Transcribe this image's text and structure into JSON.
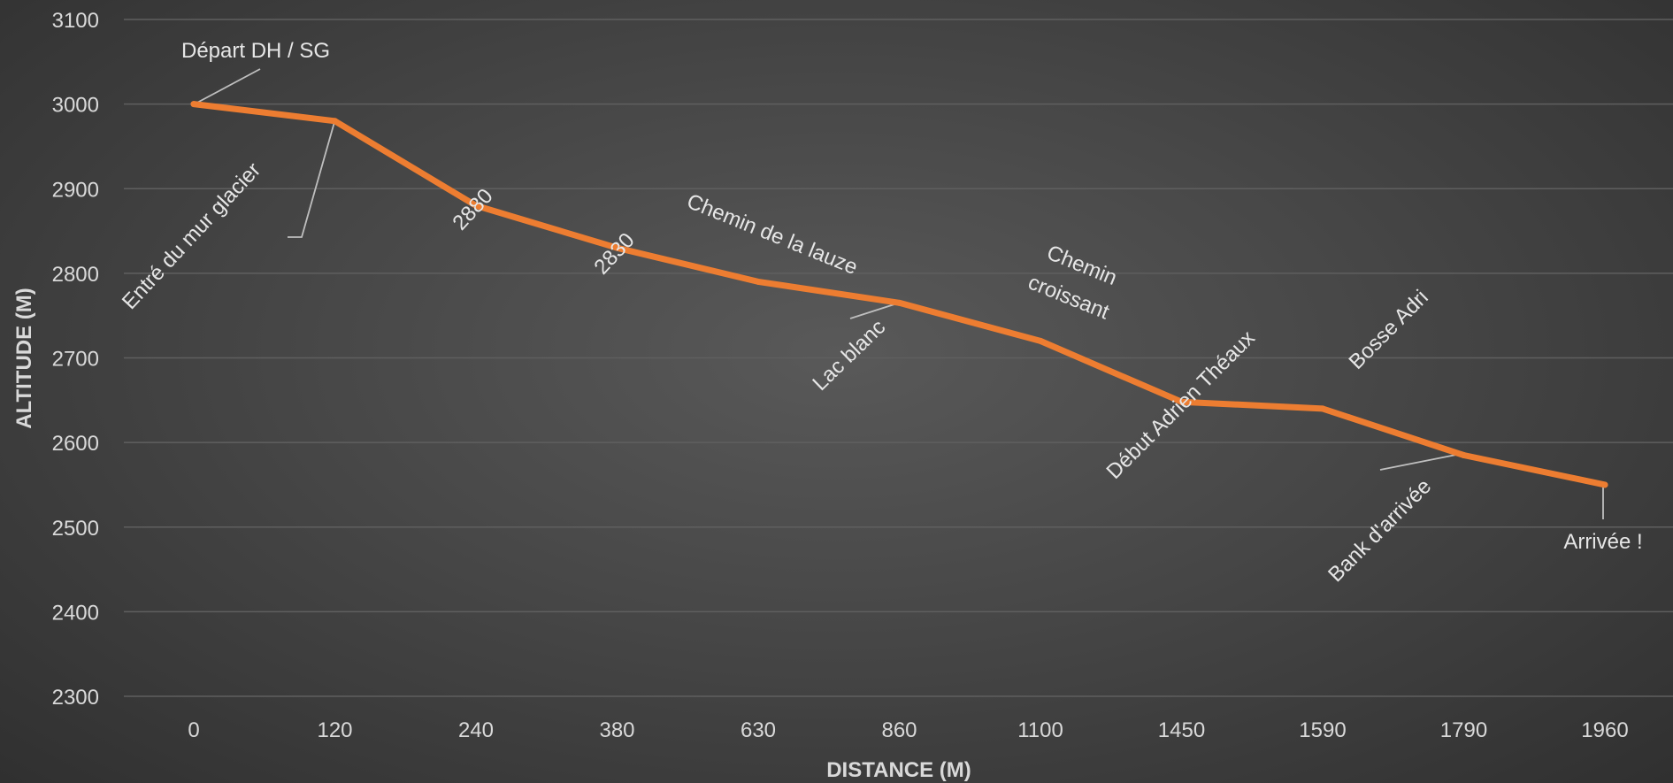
{
  "chart_data": {
    "type": "line",
    "title": "",
    "xlabel": "DISTANCE (M)",
    "ylabel": "ALTITUDE (M)",
    "categories": [
      "0",
      "120",
      "240",
      "380",
      "630",
      "860",
      "1100",
      "1450",
      "1590",
      "1790",
      "1960"
    ],
    "ylim": [
      2300,
      3100
    ],
    "yticks": [
      "3100",
      "3000",
      "2900",
      "2800",
      "2700",
      "2600",
      "2500",
      "2400",
      "2300"
    ],
    "grid": true,
    "legend": "none",
    "series": [
      {
        "values": [
          3000,
          2980,
          2880,
          2830,
          2790,
          2765,
          2720,
          2648,
          2640,
          2585,
          2550
        ]
      }
    ],
    "annotations": [
      {
        "text": "Départ DH / SG"
      },
      {
        "text": "Entré du mur glacier"
      },
      {
        "text": "2880"
      },
      {
        "text": "2830"
      },
      {
        "text": "Chemin de la lauze"
      },
      {
        "text": "Lac blanc"
      },
      {
        "text": "Chemin"
      },
      {
        "text": "croissant"
      },
      {
        "text": "Début Adrien Théaux"
      },
      {
        "text": "Bosse  Adri"
      },
      {
        "text": "Bank d'arrivée"
      },
      {
        "text": "Arrivée !"
      }
    ],
    "colors": {
      "line": "#ED7D31",
      "grid": "#5f5f5f",
      "text": "#d9d9d9",
      "leader": "#bfbfbf"
    }
  }
}
